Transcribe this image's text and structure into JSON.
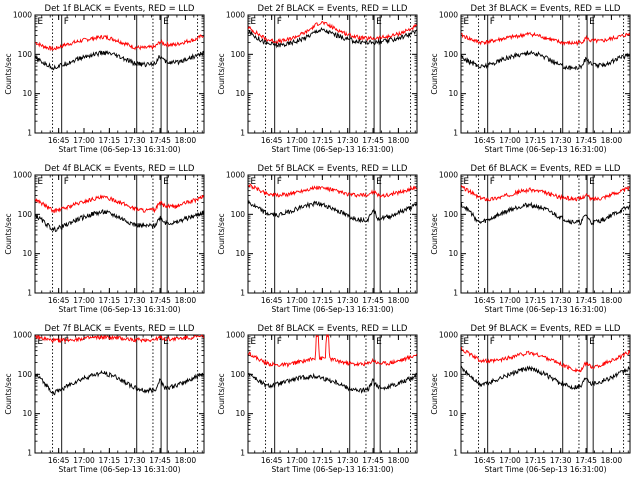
{
  "colors": {
    "events": "#000000",
    "lld": "#ff0000",
    "background": "#ffffff"
  },
  "chart_data": [
    {
      "type": "line",
      "title": "Det 1f BLACK = Events, RED = LLD",
      "xlabel": "Start Time (06-Sep-13 16:31:00)",
      "ylabel": "Counts/sec",
      "xlim": [
        16.5167,
        18.1833
      ],
      "ylim": [
        1,
        1000
      ],
      "yscale": "log",
      "xticklabels": [
        "16:45",
        "17:00",
        "17:15",
        "17:30",
        "17:45",
        "18:00"
      ],
      "yticklabels": [
        "1",
        "10",
        "100",
        "1000"
      ],
      "flags": [
        "E",
        "F",
        "E"
      ],
      "series": [
        {
          "color": "red",
          "x": [
            16.52,
            16.6,
            16.7,
            16.8,
            16.9,
            17.0,
            17.1,
            17.2,
            17.3,
            17.4,
            17.5,
            17.6,
            17.7,
            17.75,
            17.8,
            17.9,
            18.0,
            18.1,
            18.18
          ],
          "y": [
            200,
            160,
            135,
            170,
            200,
            230,
            260,
            280,
            240,
            190,
            150,
            145,
            155,
            210,
            180,
            175,
            210,
            240,
            310
          ]
        },
        {
          "color": "black",
          "x": [
            16.52,
            16.6,
            16.7,
            16.8,
            16.9,
            17.0,
            17.1,
            17.2,
            17.3,
            17.4,
            17.5,
            17.6,
            17.7,
            17.75,
            17.8,
            17.9,
            18.0,
            18.1,
            18.18
          ],
          "y": [
            80,
            60,
            45,
            55,
            70,
            85,
            100,
            110,
            95,
            75,
            58,
            55,
            60,
            90,
            65,
            60,
            75,
            90,
            110
          ]
        }
      ]
    },
    {
      "type": "line",
      "title": "Det 2f BLACK = Events, RED = LLD",
      "xlabel": "Start Time (06-Sep-13 16:31:00)",
      "ylabel": "Counts/sec",
      "xlim": [
        16.5167,
        18.1833
      ],
      "ylim": [
        1,
        1000
      ],
      "yscale": "log",
      "xticklabels": [
        "16:45",
        "17:00",
        "17:15",
        "17:30",
        "17:45",
        "18:00"
      ],
      "yticklabels": [
        "1",
        "10",
        "100",
        "1000"
      ],
      "flags": [
        "E",
        "F",
        "E"
      ],
      "series": [
        {
          "color": "red",
          "x": [
            16.52,
            16.6,
            16.7,
            16.8,
            16.9,
            17.0,
            17.1,
            17.2,
            17.25,
            17.3,
            17.4,
            17.5,
            17.6,
            17.7,
            17.8,
            17.9,
            18.0,
            18.1,
            18.18
          ],
          "y": [
            480,
            350,
            240,
            210,
            230,
            290,
            380,
            600,
            650,
            560,
            420,
            320,
            270,
            250,
            260,
            280,
            330,
            420,
            520
          ]
        },
        {
          "color": "black",
          "x": [
            16.52,
            16.6,
            16.7,
            16.8,
            16.9,
            17.0,
            17.1,
            17.2,
            17.25,
            17.3,
            17.4,
            17.5,
            17.6,
            17.7,
            17.8,
            17.9,
            18.0,
            18.1,
            18.18
          ],
          "y": [
            380,
            270,
            190,
            170,
            180,
            220,
            280,
            400,
            420,
            380,
            300,
            240,
            210,
            200,
            205,
            220,
            260,
            320,
            390
          ]
        }
      ]
    },
    {
      "type": "line",
      "title": "Det 3f BLACK = Events, RED = LLD",
      "xlabel": "Start Time (06-Sep-13 16:31:00)",
      "ylabel": "Counts/sec",
      "xlim": [
        16.5167,
        18.1833
      ],
      "ylim": [
        1,
        1000
      ],
      "yscale": "log",
      "xticklabels": [
        "16:45",
        "17:00",
        "17:15",
        "17:30",
        "17:45",
        "18:00"
      ],
      "yticklabels": [
        "1",
        "10",
        "100",
        "1000"
      ],
      "flags": [
        "E",
        "F",
        "E"
      ],
      "series": [
        {
          "color": "red",
          "x": [
            16.52,
            16.6,
            16.7,
            16.8,
            16.9,
            17.0,
            17.1,
            17.2,
            17.3,
            17.4,
            17.5,
            17.6,
            17.7,
            17.75,
            17.8,
            17.9,
            18.0,
            18.1,
            18.18
          ],
          "y": [
            310,
            250,
            200,
            210,
            240,
            270,
            300,
            330,
            290,
            240,
            200,
            190,
            200,
            260,
            220,
            215,
            250,
            290,
            330
          ]
        },
        {
          "color": "black",
          "x": [
            16.52,
            16.6,
            16.7,
            16.8,
            16.9,
            17.0,
            17.1,
            17.2,
            17.3,
            17.4,
            17.5,
            17.6,
            17.7,
            17.75,
            17.8,
            17.9,
            18.0,
            18.1,
            18.18
          ],
          "y": [
            90,
            65,
            48,
            55,
            70,
            85,
            100,
            112,
            95,
            72,
            52,
            45,
            48,
            80,
            55,
            52,
            65,
            85,
            100
          ]
        }
      ]
    },
    {
      "type": "line",
      "title": "Det 4f BLACK = Events, RED = LLD",
      "xlabel": "Start Time (06-Sep-13 16:31:00)",
      "ylabel": "Counts/sec",
      "xlim": [
        16.5167,
        18.1833
      ],
      "ylim": [
        1,
        1000
      ],
      "yscale": "log",
      "xticklabels": [
        "16:45",
        "17:00",
        "17:15",
        "17:30",
        "17:45",
        "18:00"
      ],
      "yticklabels": [
        "1",
        "10",
        "100",
        "1000"
      ],
      "flags": [
        "E",
        "F",
        "E"
      ],
      "series": [
        {
          "color": "red",
          "x": [
            16.52,
            16.6,
            16.7,
            16.8,
            16.9,
            17.0,
            17.1,
            17.2,
            17.3,
            17.4,
            17.5,
            17.6,
            17.7,
            17.75,
            17.8,
            17.9,
            18.0,
            18.1,
            18.18
          ],
          "y": [
            240,
            180,
            120,
            140,
            175,
            210,
            250,
            270,
            230,
            180,
            140,
            125,
            130,
            200,
            160,
            155,
            195,
            230,
            290
          ]
        },
        {
          "color": "black",
          "x": [
            16.52,
            16.6,
            16.7,
            16.8,
            16.9,
            17.0,
            17.1,
            17.2,
            17.3,
            17.4,
            17.5,
            17.6,
            17.7,
            17.75,
            17.8,
            17.9,
            18.0,
            18.1,
            18.18
          ],
          "y": [
            95,
            65,
            40,
            50,
            68,
            85,
            105,
            115,
            95,
            72,
            55,
            50,
            52,
            85,
            62,
            60,
            78,
            92,
            115
          ]
        }
      ]
    },
    {
      "type": "line",
      "title": "Det 5f BLACK = Events, RED = LLD",
      "xlabel": "Start Time (06-Sep-13 16:31:00)",
      "ylabel": "Counts/sec",
      "xlim": [
        16.5167,
        18.1833
      ],
      "ylim": [
        1,
        1000
      ],
      "yscale": "log",
      "xticklabels": [
        "16:45",
        "17:00",
        "17:15",
        "17:30",
        "17:45",
        "18:00"
      ],
      "yticklabels": [
        "1",
        "10",
        "100",
        "1000"
      ],
      "flags": [
        "E",
        "F",
        "E"
      ],
      "series": [
        {
          "color": "red",
          "x": [
            16.52,
            16.6,
            16.7,
            16.8,
            16.9,
            17.0,
            17.1,
            17.2,
            17.3,
            17.4,
            17.5,
            17.6,
            17.7,
            17.75,
            17.8,
            17.9,
            18.0,
            18.1,
            18.18
          ],
          "y": [
            560,
            450,
            340,
            300,
            320,
            370,
            430,
            480,
            450,
            380,
            320,
            300,
            310,
            380,
            300,
            310,
            360,
            420,
            500
          ]
        },
        {
          "color": "black",
          "x": [
            16.52,
            16.6,
            16.7,
            16.8,
            16.9,
            17.0,
            17.1,
            17.2,
            17.3,
            17.4,
            17.5,
            17.6,
            17.7,
            17.75,
            17.8,
            17.9,
            18.0,
            18.1,
            18.18
          ],
          "y": [
            200,
            150,
            105,
            95,
            110,
            140,
            170,
            190,
            160,
            125,
            90,
            75,
            72,
            140,
            80,
            85,
            110,
            140,
            175
          ]
        }
      ]
    },
    {
      "type": "line",
      "title": "Det 6f BLACK = Events, RED = LLD",
      "xlabel": "Start Time (06-Sep-13 16:31:00)",
      "ylabel": "Counts/sec",
      "xlim": [
        16.5167,
        18.1833
      ],
      "ylim": [
        1,
        1000
      ],
      "yscale": "log",
      "xticklabels": [
        "16:45",
        "17:00",
        "17:15",
        "17:30",
        "17:45",
        "18:00"
      ],
      "yticklabels": [
        "1",
        "10",
        "100",
        "1000"
      ],
      "flags": [
        "E",
        "F",
        "E"
      ],
      "series": [
        {
          "color": "red",
          "x": [
            16.52,
            16.6,
            16.7,
            16.8,
            16.9,
            17.0,
            17.1,
            17.2,
            17.3,
            17.4,
            17.5,
            17.6,
            17.7,
            17.75,
            17.8,
            17.9,
            18.0,
            18.1,
            18.18
          ],
          "y": [
            500,
            380,
            260,
            240,
            270,
            320,
            380,
            420,
            380,
            320,
            270,
            250,
            245,
            320,
            240,
            260,
            320,
            390,
            470
          ]
        },
        {
          "color": "black",
          "x": [
            16.52,
            16.6,
            16.7,
            16.8,
            16.9,
            17.0,
            17.1,
            17.2,
            17.3,
            17.4,
            17.5,
            17.6,
            17.7,
            17.75,
            17.8,
            17.9,
            18.0,
            18.1,
            18.18
          ],
          "y": [
            180,
            120,
            60,
            75,
            100,
            130,
            160,
            175,
            150,
            115,
            82,
            65,
            62,
            100,
            60,
            70,
            95,
            125,
            160
          ]
        }
      ]
    },
    {
      "type": "line",
      "title": "Det 7f BLACK = Events, RED = LLD",
      "xlabel": "Start Time (06-Sep-13 16:31:00)",
      "ylabel": "Counts/sec",
      "xlim": [
        16.5167,
        18.1833
      ],
      "ylim": [
        1,
        1000
      ],
      "yscale": "log",
      "xticklabels": [
        "16:45",
        "17:00",
        "17:15",
        "17:30",
        "17:45",
        "18:00"
      ],
      "yticklabels": [
        "1",
        "10",
        "100",
        "1000"
      ],
      "flags": [
        "E",
        "F",
        "E"
      ],
      "series": [
        {
          "color": "red",
          "x": [
            16.52,
            16.6,
            16.7,
            16.8,
            16.9,
            17.0,
            17.1,
            17.2,
            17.3,
            17.4,
            17.5,
            17.6,
            17.7,
            17.75,
            17.8,
            17.9,
            18.0,
            18.1,
            18.18
          ],
          "y": [
            900,
            800,
            720,
            740,
            780,
            820,
            850,
            870,
            840,
            800,
            760,
            750,
            760,
            850,
            790,
            800,
            840,
            880,
            920
          ]
        },
        {
          "color": "black",
          "x": [
            16.52,
            16.6,
            16.7,
            16.8,
            16.9,
            17.0,
            17.1,
            17.2,
            17.3,
            17.4,
            17.5,
            17.6,
            17.7,
            17.75,
            17.8,
            17.9,
            18.0,
            18.1,
            18.18
          ],
          "y": [
            100,
            65,
            33,
            45,
            62,
            80,
            98,
            108,
            90,
            65,
            45,
            38,
            40,
            75,
            45,
            50,
            65,
            85,
            105
          ]
        }
      ]
    },
    {
      "type": "line",
      "title": "Det 8f BLACK = Events, RED = LLD",
      "xlabel": "Start Time (06-Sep-13 16:31:00)",
      "ylabel": "Counts/sec",
      "xlim": [
        16.5167,
        18.1833
      ],
      "ylim": [
        1,
        1000
      ],
      "yscale": "log",
      "xticklabels": [
        "16:45",
        "17:00",
        "17:15",
        "17:30",
        "17:45",
        "18:00"
      ],
      "yticklabels": [
        "1",
        "10",
        "100",
        "1000"
      ],
      "flags": [
        "E",
        "F",
        "E"
      ],
      "series": [
        {
          "color": "red",
          "x": [
            16.52,
            16.6,
            16.7,
            16.8,
            16.9,
            17.0,
            17.1,
            17.18,
            17.19,
            17.21,
            17.22,
            17.28,
            17.29,
            17.31,
            17.32,
            17.4,
            17.5,
            17.6,
            17.7,
            17.75,
            17.8,
            17.9,
            18.0,
            18.1,
            18.18
          ],
          "y": [
            360,
            260,
            190,
            170,
            175,
            200,
            230,
            250,
            1000,
            1000,
            250,
            260,
            1000,
            1000,
            250,
            220,
            190,
            180,
            185,
            230,
            190,
            190,
            220,
            260,
            320
          ]
        },
        {
          "color": "black",
          "x": [
            16.52,
            16.6,
            16.7,
            16.8,
            16.9,
            17.0,
            17.1,
            17.2,
            17.25,
            17.28,
            17.4,
            17.5,
            17.6,
            17.7,
            17.75,
            17.8,
            17.9,
            18.0,
            18.1,
            18.18
          ],
          "y": [
            110,
            75,
            50,
            55,
            65,
            78,
            85,
            88,
            80,
            75,
            62,
            45,
            38,
            40,
            70,
            45,
            48,
            60,
            75,
            95
          ]
        }
      ]
    },
    {
      "type": "line",
      "title": "Det 9f BLACK = Events, RED = LLD",
      "xlabel": "Start Time (06-Sep-13 16:31:00)",
      "ylabel": "Counts/sec",
      "xlim": [
        16.5167,
        18.1833
      ],
      "ylim": [
        1,
        1000
      ],
      "yscale": "log",
      "xticklabels": [
        "16:45",
        "17:00",
        "17:15",
        "17:30",
        "17:45",
        "18:00"
      ],
      "yticklabels": [
        "1",
        "10",
        "100",
        "1000"
      ],
      "flags": [
        "E",
        "F",
        "E"
      ],
      "series": [
        {
          "color": "red",
          "x": [
            16.52,
            16.6,
            16.7,
            16.8,
            16.9,
            17.0,
            17.1,
            17.2,
            17.3,
            17.4,
            17.5,
            17.6,
            17.7,
            17.75,
            17.8,
            17.9,
            18.0,
            18.1,
            18.18
          ],
          "y": [
            450,
            330,
            230,
            210,
            230,
            270,
            320,
            350,
            300,
            240,
            180,
            140,
            120,
            200,
            150,
            170,
            230,
            280,
            380
          ]
        },
        {
          "color": "black",
          "x": [
            16.52,
            16.6,
            16.7,
            16.8,
            16.9,
            17.0,
            17.1,
            17.2,
            17.3,
            17.4,
            17.5,
            17.6,
            17.7,
            17.75,
            17.8,
            17.9,
            18.0,
            18.1,
            18.18
          ],
          "y": [
            145,
            95,
            55,
            62,
            80,
            100,
            125,
            140,
            115,
            82,
            58,
            48,
            50,
            90,
            60,
            65,
            85,
            110,
            140
          ]
        }
      ]
    }
  ]
}
